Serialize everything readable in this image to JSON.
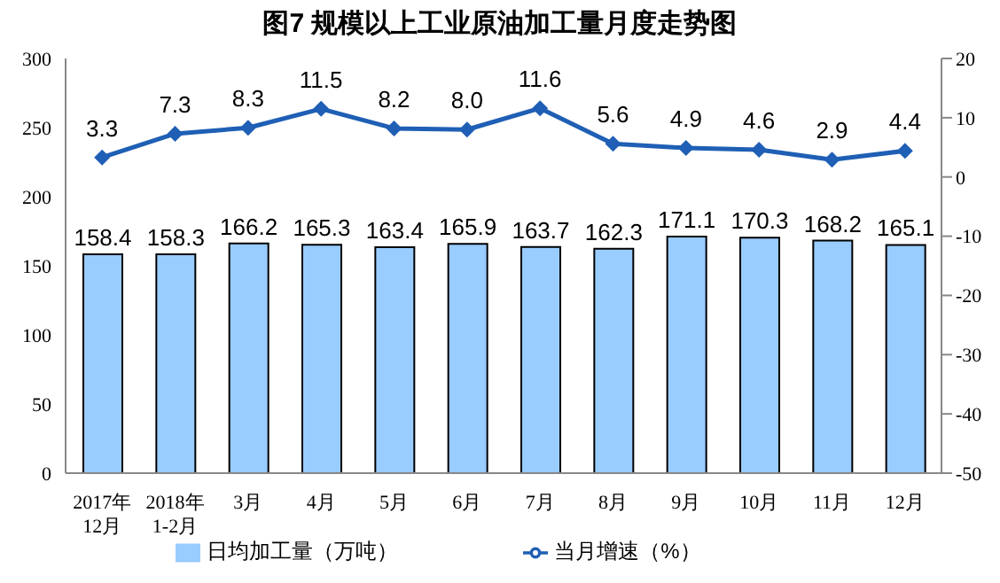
{
  "chart_data": {
    "type": "bar",
    "title": "图7  规模以上工业原油加工量月度走势图",
    "categories": [
      "2017年\n12月",
      "2018年\n1-2月",
      "3月",
      "4月",
      "5月",
      "6月",
      "7月",
      "8月",
      "9月",
      "10月",
      "11月",
      "12月"
    ],
    "series": [
      {
        "name": "日均加工量（万吨）",
        "color": "#99ccff",
        "values": [
          158.4,
          158.3,
          166.2,
          165.3,
          163.4,
          165.9,
          163.7,
          162.3,
          171.1,
          170.3,
          168.2,
          165.1
        ],
        "value_labels": [
          "158.4",
          "158.3",
          "166.2",
          "165.3",
          "163.4",
          "165.9",
          "163.7",
          "162.3",
          "171.1",
          "170.3",
          "168.2",
          "165.1"
        ]
      },
      {
        "name": "当月增速（%）",
        "type": "line",
        "axis": "y2",
        "color": "#1f5fb5",
        "marker": "diamond",
        "values": [
          3.3,
          7.3,
          8.3,
          11.5,
          8.2,
          8.0,
          11.6,
          5.6,
          4.9,
          4.6,
          2.9,
          4.4
        ],
        "value_labels": [
          "3.3",
          "7.3",
          "8.3",
          "11.5",
          "8.2",
          "8.0",
          "11.6",
          "5.6",
          "4.9",
          "4.6",
          "2.9",
          "4.4"
        ]
      }
    ],
    "ylim": [
      0,
      300
    ],
    "yticks": [
      0,
      50,
      100,
      150,
      200,
      250,
      300
    ],
    "y2lim": [
      -50,
      20
    ],
    "y2ticks": [
      -50,
      -40,
      -30,
      -20,
      -10,
      0,
      10,
      20
    ],
    "legend": "bottom"
  }
}
